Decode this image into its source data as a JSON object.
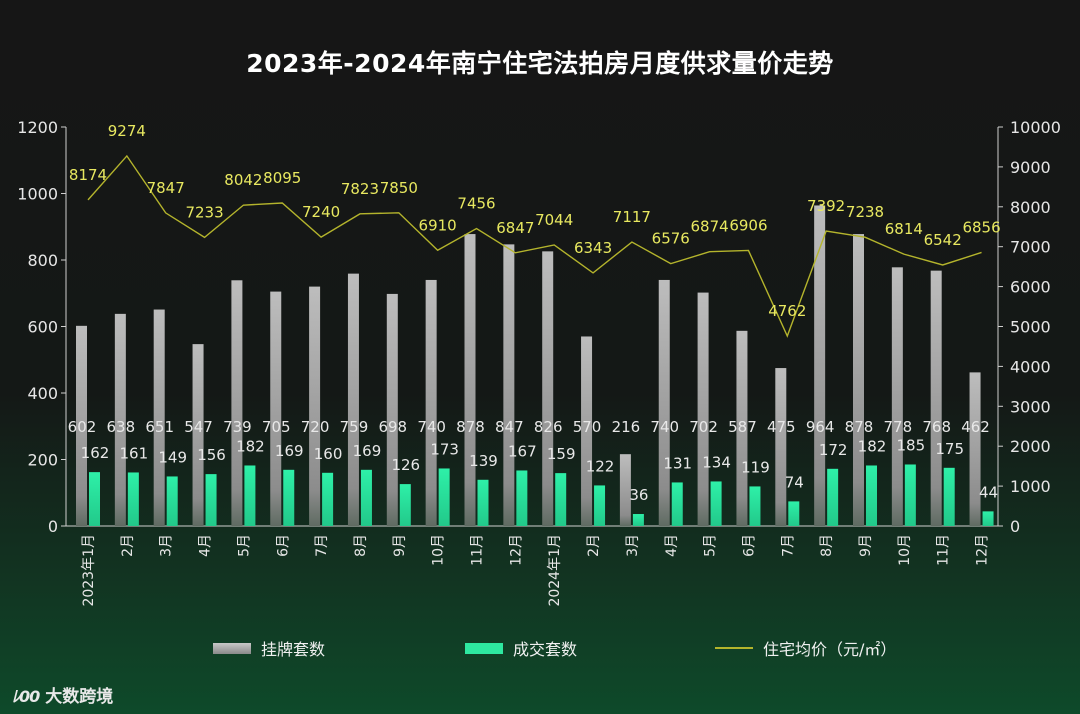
{
  "chart_data": {
    "type": "bar",
    "title": "2023年-2024年南宁住宅法拍房月度供求量价走势",
    "categories": [
      "2023年1月",
      "2月",
      "3月",
      "4月",
      "5月",
      "6月",
      "7月",
      "8月",
      "9月",
      "10月",
      "11月",
      "12月",
      "2024年1月",
      "2月",
      "3月",
      "4月",
      "5月",
      "6月",
      "7月",
      "8月",
      "9月",
      "10月",
      "11月",
      "12月"
    ],
    "series": [
      {
        "name": "挂牌套数",
        "type": "bar",
        "axis": "left",
        "color": "#a8a8a8",
        "values": [
          602,
          638,
          651,
          547,
          739,
          705,
          720,
          759,
          698,
          740,
          878,
          847,
          826,
          570,
          216,
          740,
          702,
          587,
          475,
          964,
          878,
          778,
          768,
          462
        ]
      },
      {
        "name": "成交套数",
        "type": "bar",
        "axis": "left",
        "color": "#2ee8a0",
        "values": [
          162,
          161,
          149,
          156,
          182,
          169,
          160,
          169,
          126,
          173,
          139,
          167,
          159,
          122,
          36,
          131,
          134,
          119,
          74,
          172,
          182,
          185,
          175,
          44
        ]
      },
      {
        "name": "住宅均价（元/㎡）",
        "type": "line",
        "axis": "right",
        "color": "#b4b42c",
        "values": [
          8174,
          9274,
          7847,
          7233,
          8042,
          8095,
          7240,
          7823,
          7850,
          6910,
          7456,
          6847,
          7044,
          6343,
          7117,
          6576,
          6874,
          6906,
          4762,
          7392,
          7238,
          6814,
          6542,
          6856
        ]
      }
    ],
    "y_left": {
      "min": 0,
      "max": 1200,
      "ticks": [
        0,
        200,
        400,
        600,
        800,
        1000,
        1200
      ]
    },
    "y_right": {
      "min": 0,
      "max": 10000,
      "ticks": [
        0,
        1000,
        2000,
        3000,
        4000,
        5000,
        6000,
        7000,
        8000,
        9000,
        10000
      ]
    },
    "legend_position": "bottom",
    "grid": false
  },
  "watermark": {
    "text": "大数跨境",
    "logo_text": "ﾚ00"
  }
}
